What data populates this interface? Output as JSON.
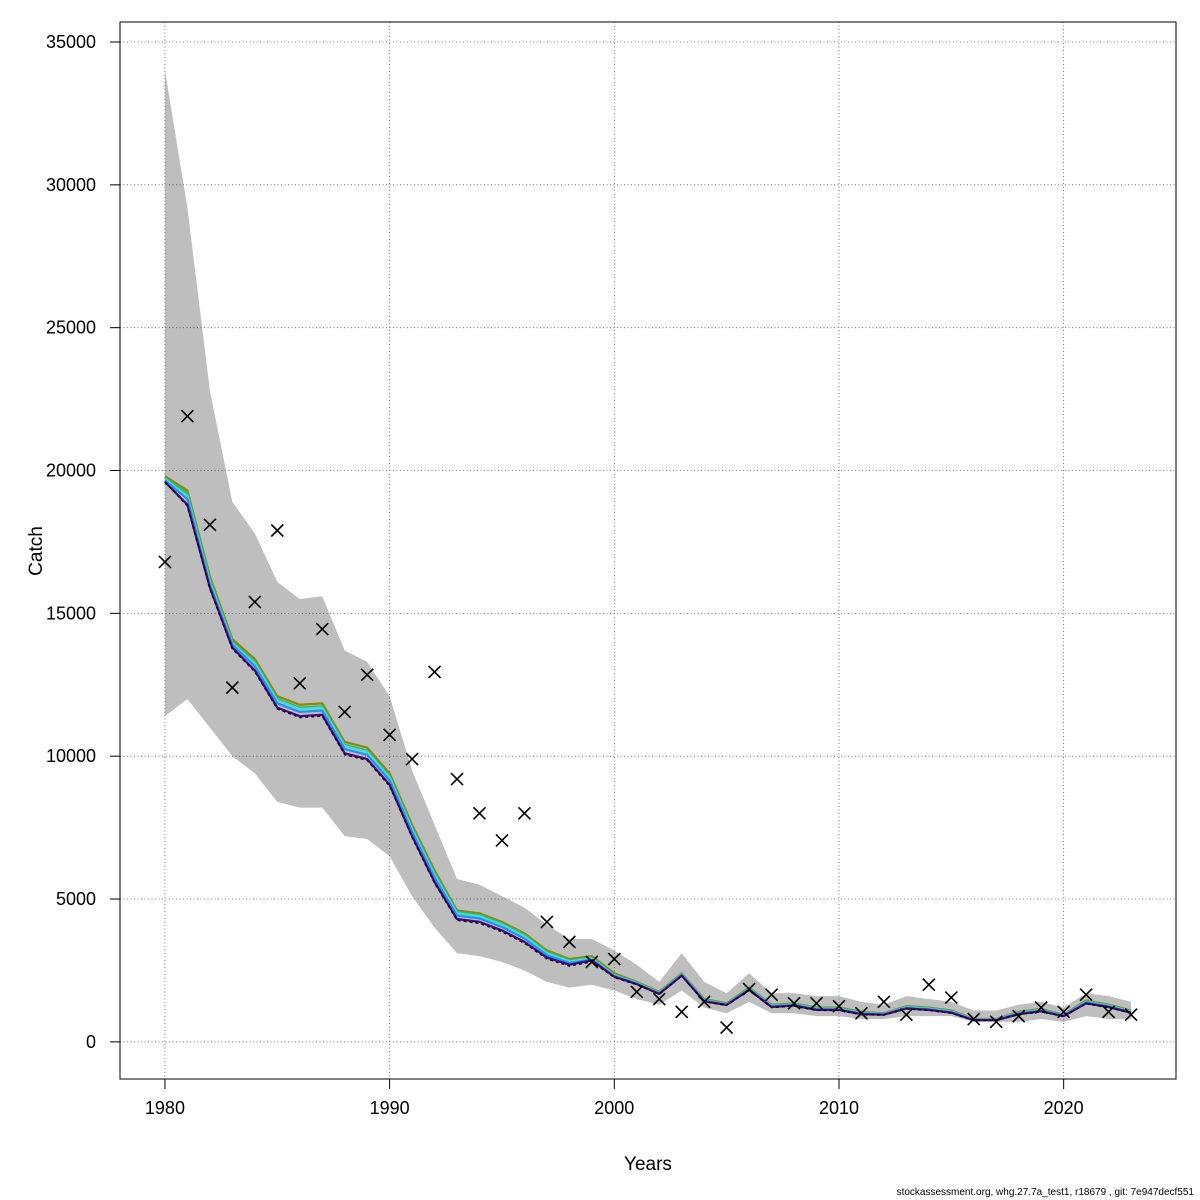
{
  "chart_data": {
    "type": "line",
    "xlabel": "Years",
    "ylabel": "Catch",
    "xlim": [
      1978,
      2025
    ],
    "ylim": [
      -1300,
      35700
    ],
    "xticks": [
      1980,
      1990,
      2000,
      2010,
      2020
    ],
    "yticks": [
      0,
      5000,
      10000,
      15000,
      20000,
      25000,
      30000,
      35000
    ],
    "grid": true,
    "legend": "none",
    "band_color": "#bebebe",
    "years": [
      1980,
      1981,
      1982,
      1983,
      1984,
      1985,
      1986,
      1987,
      1988,
      1989,
      1990,
      1991,
      1992,
      1993,
      1994,
      1995,
      1996,
      1997,
      1998,
      1999,
      2000,
      2001,
      2002,
      2003,
      2004,
      2005,
      2006,
      2007,
      2008,
      2009,
      2010,
      2011,
      2012,
      2013,
      2014,
      2015,
      2016,
      2017,
      2018,
      2019,
      2020,
      2021,
      2022,
      2023
    ],
    "band_upper": [
      34000,
      29200,
      22800,
      18900,
      17800,
      16100,
      15500,
      15600,
      13700,
      13300,
      12100,
      9500,
      7600,
      5700,
      5500,
      5100,
      4700,
      4100,
      3600,
      3600,
      3200,
      2700,
      2100,
      3100,
      2100,
      1700,
      2400,
      1700,
      1700,
      1600,
      1600,
      1400,
      1300,
      1600,
      1500,
      1400,
      1100,
      1100,
      1300,
      1400,
      1200,
      1700,
      1600,
      1400
    ],
    "band_lower": [
      11400,
      12000,
      11000,
      10000,
      9400,
      8400,
      8200,
      8200,
      7200,
      7100,
      6500,
      5100,
      4000,
      3100,
      3000,
      2800,
      2500,
      2100,
      1900,
      2000,
      1800,
      1500,
      1300,
      1800,
      1200,
      1000,
      1400,
      1000,
      1000,
      900,
      900,
      800,
      800,
      900,
      900,
      900,
      700,
      700,
      700,
      800,
      700,
      900,
      800,
      800
    ],
    "series": [
      {
        "color": "#8b8b00",
        "values": [
          19800,
          19300,
          16300,
          14100,
          13400,
          12100,
          11800,
          11850,
          10500,
          10300,
          9400,
          7600,
          6000,
          4600,
          4500,
          4200,
          3800,
          3200,
          2900,
          3000,
          2400,
          2100,
          1750,
          2400,
          1500,
          1350,
          1900,
          1300,
          1350,
          1200,
          1200,
          1050,
          1000,
          1250,
          1200,
          1100,
          800,
          800,
          1050,
          1150,
          950,
          1450,
          1300,
          1100
        ]
      },
      {
        "color": "#3cb371",
        "values": [
          19750,
          19200,
          16200,
          14000,
          13300,
          12000,
          11700,
          11750,
          10400,
          10200,
          9300,
          7500,
          5900,
          4550,
          4450,
          4150,
          3750,
          3150,
          2850,
          2950,
          2350,
          2080,
          1720,
          2380,
          1480,
          1330,
          1880,
          1280,
          1330,
          1180,
          1180,
          1030,
          990,
          1230,
          1180,
          1080,
          790,
          790,
          1030,
          1130,
          940,
          1420,
          1280,
          1080
        ]
      },
      {
        "color": "#40e0d0",
        "values": [
          19700,
          19100,
          16100,
          13950,
          13250,
          11950,
          11650,
          11700,
          10350,
          10150,
          9250,
          7450,
          5850,
          4500,
          4400,
          4100,
          3700,
          3100,
          2820,
          2920,
          2320,
          2060,
          1700,
          2360,
          1460,
          1310,
          1860,
          1260,
          1310,
          1160,
          1160,
          1010,
          970,
          1210,
          1160,
          1060,
          780,
          780,
          1010,
          1110,
          930,
          1400,
          1260,
          1060
        ]
      },
      {
        "color": "#1e90ff",
        "values": [
          19650,
          19000,
          16000,
          13900,
          13150,
          11850,
          11550,
          11600,
          10250,
          10050,
          9150,
          7350,
          5750,
          4420,
          4320,
          4020,
          3620,
          3030,
          2760,
          2880,
          2300,
          2040,
          1690,
          2340,
          1440,
          1300,
          1840,
          1240,
          1290,
          1140,
          1140,
          990,
          960,
          1190,
          1140,
          1040,
          770,
          770,
          990,
          1090,
          920,
          1380,
          1240,
          1040
        ]
      },
      {
        "color": "#4b0082",
        "values": [
          19600,
          18800,
          15900,
          13800,
          13000,
          11700,
          11400,
          11450,
          10100,
          9900,
          9000,
          7200,
          5600,
          4300,
          4200,
          3900,
          3500,
          2950,
          2700,
          2850,
          2280,
          2020,
          1680,
          2320,
          1420,
          1290,
          1820,
          1220,
          1270,
          1120,
          1120,
          970,
          950,
          1170,
          1120,
          1020,
          760,
          760,
          970,
          1070,
          900,
          1350,
          1220,
          1020
        ]
      },
      {
        "color": "#000000",
        "dashed": true,
        "values": [
          19600,
          18750,
          15850,
          13750,
          12950,
          11650,
          11350,
          11400,
          10050,
          9850,
          8950,
          7150,
          5550,
          4250,
          4150,
          3850,
          3450,
          2900,
          2650,
          2800,
          2250,
          2000,
          1660,
          2300,
          1400,
          1280,
          1800,
          1200,
          1250,
          1100,
          1100,
          950,
          940,
          1150,
          1100,
          1000,
          750,
          750,
          950,
          1050,
          890,
          1330,
          1200,
          1000
        ]
      }
    ],
    "observed": [
      [
        1980,
        16800
      ],
      [
        1981,
        21900
      ],
      [
        1982,
        18100
      ],
      [
        1983,
        12400
      ],
      [
        1984,
        15400
      ],
      [
        1985,
        17900
      ],
      [
        1986,
        12550
      ],
      [
        1987,
        14450
      ],
      [
        1988,
        11550
      ],
      [
        1989,
        12850
      ],
      [
        1990,
        10750
      ],
      [
        1991,
        9900
      ],
      [
        1992,
        12950
      ],
      [
        1993,
        9200
      ],
      [
        1994,
        8000
      ],
      [
        1995,
        7050
      ],
      [
        1996,
        8000
      ],
      [
        1997,
        4200
      ],
      [
        1998,
        3500
      ],
      [
        1999,
        2800
      ],
      [
        2000,
        2900
      ],
      [
        2001,
        1750
      ],
      [
        2002,
        1500
      ],
      [
        2003,
        1050
      ],
      [
        2004,
        1400
      ],
      [
        2005,
        500
      ],
      [
        2006,
        1850
      ],
      [
        2007,
        1650
      ],
      [
        2008,
        1350
      ],
      [
        2009,
        1350
      ],
      [
        2010,
        1250
      ],
      [
        2011,
        1000
      ],
      [
        2012,
        1400
      ],
      [
        2013,
        950
      ],
      [
        2014,
        2000
      ],
      [
        2015,
        1550
      ],
      [
        2016,
        800
      ],
      [
        2017,
        700
      ],
      [
        2018,
        900
      ],
      [
        2019,
        1200
      ],
      [
        2020,
        1050
      ],
      [
        2021,
        1650
      ],
      [
        2022,
        1050
      ],
      [
        2023,
        950
      ]
    ]
  },
  "footer": {
    "text": "stockassessment.org, whg.27.7a_test1, r18679 , git: 7e947decf551"
  }
}
